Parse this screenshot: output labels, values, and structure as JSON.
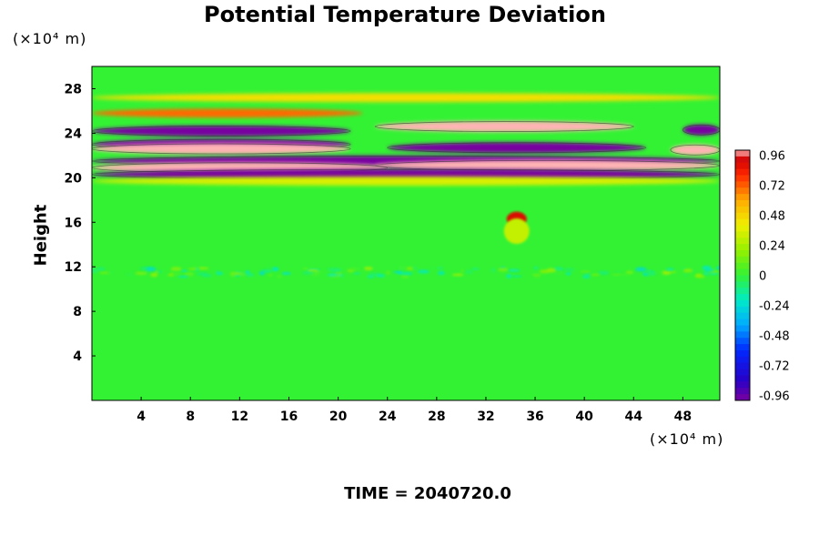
{
  "chart_data": {
    "type": "heatmap",
    "title": "Potential Temperature Deviation",
    "ylabel": "Height",
    "xlabel": "",
    "x_unit": "(×10⁴ m)",
    "y_unit": "(×10⁴ m)",
    "xlim": [
      0,
      51
    ],
    "ylim": [
      0,
      30
    ],
    "x_ticks": [
      4,
      8,
      12,
      16,
      20,
      24,
      28,
      32,
      36,
      40,
      44,
      48
    ],
    "y_ticks": [
      4,
      8,
      12,
      16,
      20,
      24,
      28
    ],
    "colorbar": {
      "min": -1.0,
      "max": 1.0,
      "tick_labels": [
        "0.96",
        "0.72",
        "0.48",
        "0.24",
        "0",
        "-0.24",
        "-0.48",
        "-0.72",
        "-0.96"
      ],
      "tick_values": [
        0.96,
        0.72,
        0.48,
        0.24,
        0,
        -0.24,
        -0.48,
        -0.72,
        -0.96
      ]
    },
    "bands": [
      {
        "y": 27.2,
        "x_start": 0,
        "x_end": 51,
        "value": 0.45
      },
      {
        "y": 25.8,
        "x_start": 0,
        "x_end": 22,
        "value": 0.7
      },
      {
        "y": 24.2,
        "x_start": 0,
        "x_end": 21,
        "value": -1.0
      },
      {
        "y": 24.6,
        "x_start": 23,
        "x_end": 44,
        "value": 1.0
      },
      {
        "y": 24.3,
        "x_start": 48,
        "x_end": 51,
        "value": -1.0
      },
      {
        "y": 23.0,
        "x_start": 0,
        "x_end": 21,
        "value": -1.0
      },
      {
        "y": 22.6,
        "x_start": 0,
        "x_end": 21,
        "value": 1.0
      },
      {
        "y": 22.7,
        "x_start": 24,
        "x_end": 45,
        "value": -1.0
      },
      {
        "y": 22.5,
        "x_start": 47,
        "x_end": 51,
        "value": 1.0
      },
      {
        "y": 21.5,
        "x_start": 0,
        "x_end": 51,
        "value": -1.0
      },
      {
        "y": 21.1,
        "x_start": 23,
        "x_end": 51,
        "value": 1.0
      },
      {
        "y": 20.9,
        "x_start": 0,
        "x_end": 24,
        "value": 1.0
      },
      {
        "y": 20.3,
        "x_start": 0,
        "x_end": 51,
        "value": -1.0
      },
      {
        "y": 19.7,
        "x_start": 0,
        "x_end": 51,
        "value": 0.35
      }
    ],
    "features": [
      {
        "x": 34.5,
        "y": 16.3,
        "value": 0.9
      },
      {
        "x": 34.5,
        "y": 15.2,
        "value": 0.3
      }
    ],
    "noise_layer_y": 11.5
  },
  "time_label": "TIME = 2040720.0"
}
